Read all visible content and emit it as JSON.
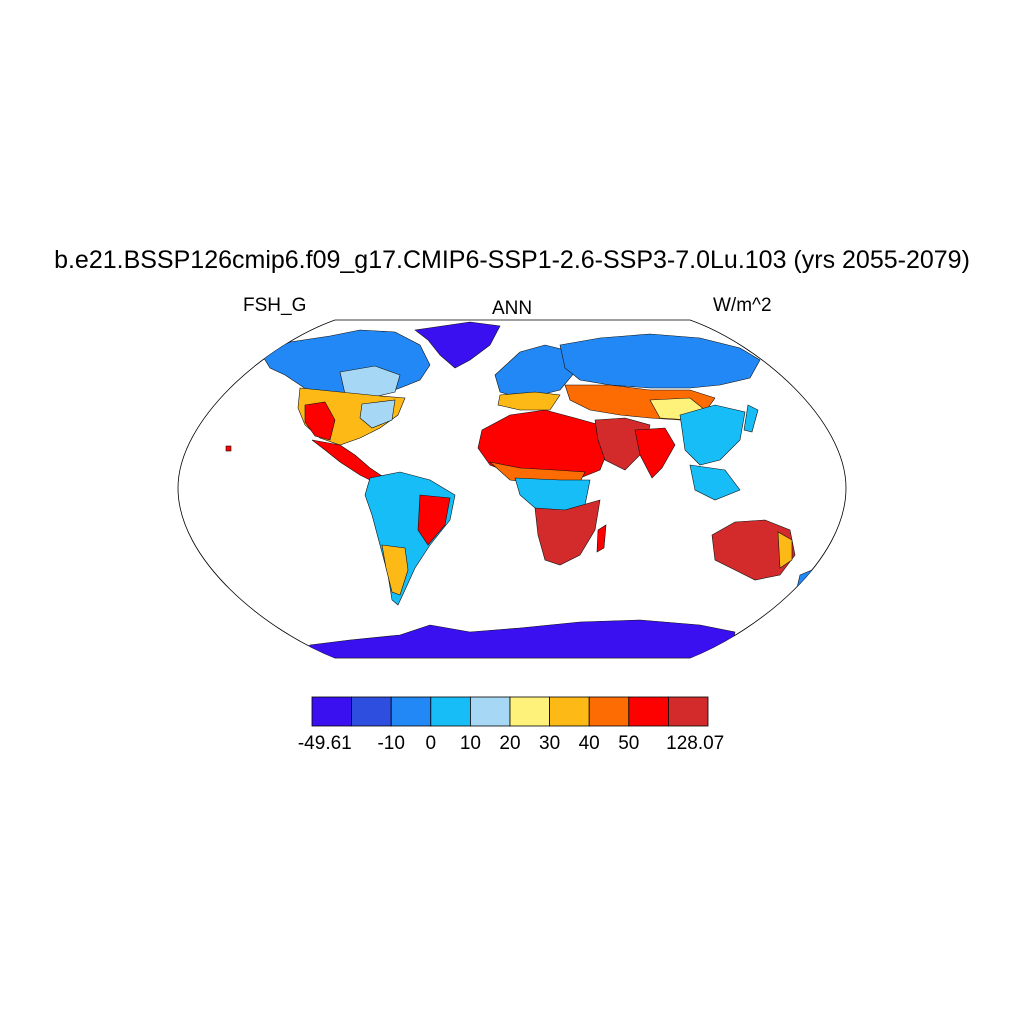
{
  "title": "b.e21.BSSP126cmip6.f09_g17.CMIP6-SSP1-2.6-SSP3-7.0Lu.103 (yrs 2055-2079)",
  "variable": "FSH_G",
  "season": "ANN",
  "units": "W/m^2",
  "colorbar": {
    "colors": [
      "#3b10f0",
      "#2e4ee0",
      "#2288f5",
      "#16bdf7",
      "#a6d8f5",
      "#fef27a",
      "#fdb916",
      "#fd6c02",
      "#fd0000",
      "#d32b2b"
    ],
    "labels": [
      "-49.61",
      "-10",
      "0",
      "10",
      "20",
      "30",
      "40",
      "50",
      "128.07"
    ]
  }
}
